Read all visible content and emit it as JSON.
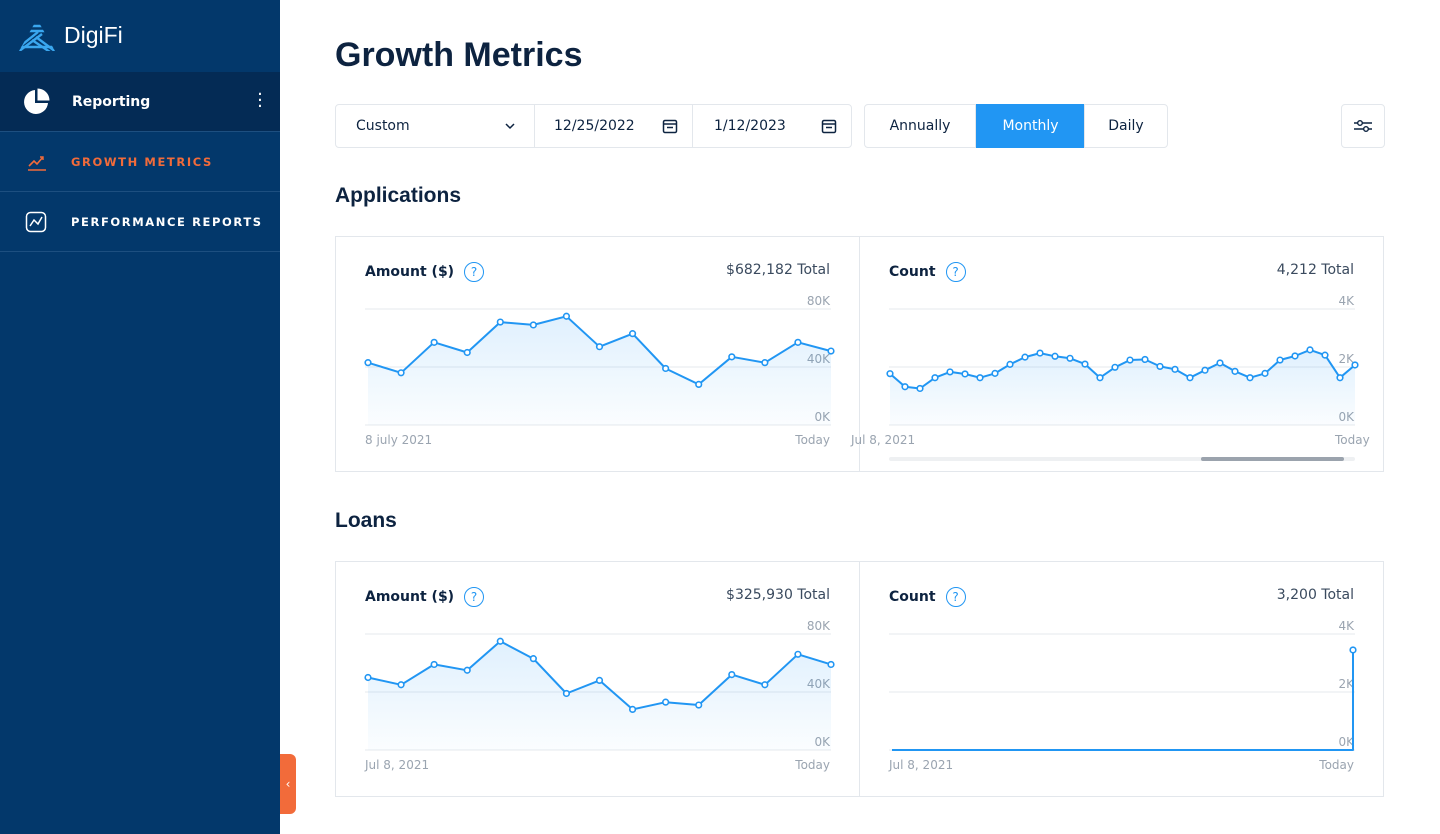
{
  "app": {
    "name": "DigiFi"
  },
  "sidebar": {
    "section": "Reporting",
    "items": [
      {
        "label": "GROWTH METRICS",
        "active": true
      },
      {
        "label": "PERFORMANCE REPORTS",
        "active": false
      }
    ]
  },
  "page": {
    "title": "Growth Metrics"
  },
  "toolbar": {
    "range_select": "Custom",
    "start_date": "12/25/2022",
    "end_date": "1/12/2023",
    "periods": [
      "Annually",
      "Monthly",
      "Daily"
    ],
    "selected_period": "Monthly"
  },
  "colors": {
    "accent": "#2196f3",
    "sidebar": "#03386b",
    "active_nav": "#f26b3a"
  },
  "sections": {
    "applications": "Applications",
    "loans": "Loans"
  },
  "chart_data": [
    {
      "id": "app-amount",
      "type": "area",
      "title": "Amount ($)",
      "total": "$682,182 Total",
      "ylim": [
        0,
        80
      ],
      "yticks": [
        "80K",
        "40K",
        "0K"
      ],
      "x_start": "8 july 2021",
      "x_end": "Today",
      "values": [
        43,
        36,
        57,
        50,
        71,
        69,
        75,
        54,
        63,
        39,
        28,
        47,
        43,
        57,
        51
      ]
    },
    {
      "id": "app-count",
      "type": "area",
      "title": "Count",
      "total": "4,212 Total",
      "ylim": [
        0,
        4
      ],
      "yticks": [
        "4K",
        "2K",
        "0K"
      ],
      "x_start": "Jul 8, 2021",
      "x_end": "Today",
      "scrollable": true,
      "values": [
        1.77,
        1.32,
        1.26,
        1.63,
        1.83,
        1.76,
        1.63,
        1.78,
        2.09,
        2.34,
        2.48,
        2.37,
        2.3,
        2.1,
        1.63,
        1.99,
        2.24,
        2.26,
        2.02,
        1.92,
        1.63,
        1.89,
        2.14,
        1.85,
        1.63,
        1.78,
        2.24,
        2.38,
        2.59,
        2.41,
        1.63,
        2.07
      ]
    },
    {
      "id": "loan-amount",
      "type": "area",
      "title": "Amount ($)",
      "total": "$325,930 Total",
      "ylim": [
        0,
        80
      ],
      "yticks": [
        "80K",
        "40K",
        "0K"
      ],
      "x_start": "Jul 8, 2021",
      "x_end": "Today",
      "values": [
        50,
        45,
        59,
        55,
        75,
        63,
        39,
        48,
        28,
        33,
        31,
        52,
        45,
        66,
        59
      ]
    },
    {
      "id": "loan-count",
      "type": "area",
      "title": "Count",
      "total": "3,200 Total",
      "ylim": [
        0,
        4
      ],
      "yticks": [
        "4K",
        "2K",
        "0K"
      ],
      "x_start": "Jul 8, 2021",
      "x_end": "Today",
      "values": [
        0,
        0,
        0,
        0,
        0,
        0,
        0,
        0,
        0,
        0,
        0,
        0,
        0,
        0,
        0,
        0,
        0,
        0,
        0,
        0,
        0,
        0,
        0,
        0,
        0,
        0,
        0,
        0,
        0,
        0,
        0,
        0,
        0,
        0,
        0,
        0,
        0,
        0,
        0,
        0,
        0,
        0,
        0,
        0,
        0,
        0,
        0,
        0,
        0,
        0,
        0,
        0,
        0,
        0,
        0,
        0,
        0,
        0,
        0,
        0,
        0,
        0,
        0,
        3.45
      ]
    }
  ]
}
